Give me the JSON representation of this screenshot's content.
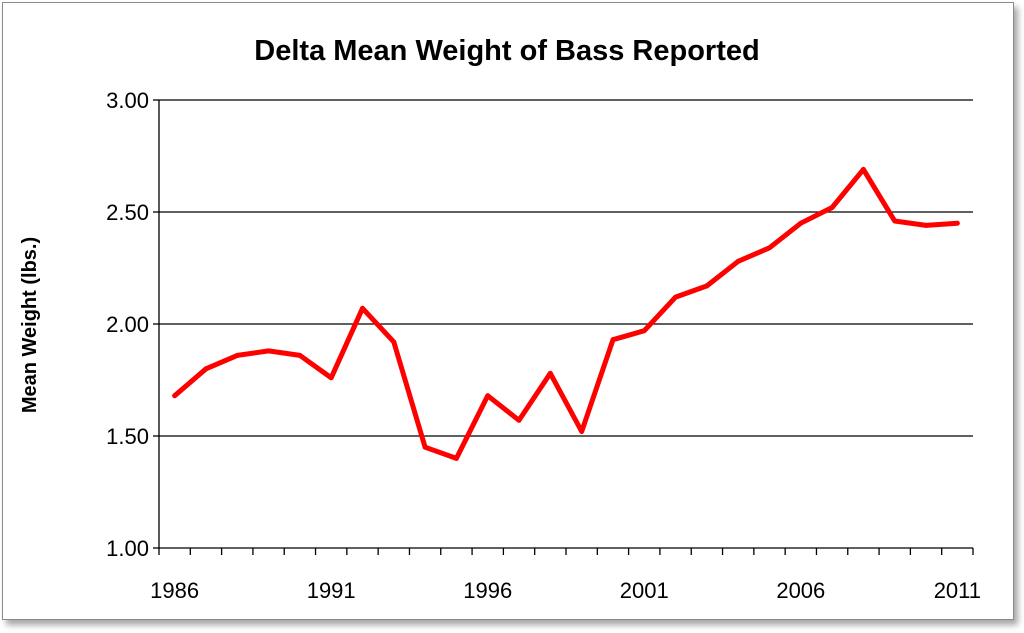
{
  "chart_data": {
    "type": "line",
    "title": "Delta Mean Weight of Bass Reported",
    "xlabel": "",
    "ylabel": "Mean Weight (lbs.)",
    "ylim": [
      1.0,
      3.0
    ],
    "xlim": [
      1986,
      2011
    ],
    "y_ticks": [
      "1.00",
      "1.50",
      "2.00",
      "2.50",
      "3.00"
    ],
    "x_ticks": [
      "1986",
      "1991",
      "1996",
      "2001",
      "2006",
      "2011"
    ],
    "grid": true,
    "legend": "none",
    "series": [
      {
        "color": "#ff0000",
        "x": [
          1986,
          1987,
          1988,
          1989,
          1990,
          1991,
          1992,
          1993,
          1994,
          1995,
          1996,
          1997,
          1998,
          1999,
          2000,
          2001,
          2002,
          2003,
          2004,
          2005,
          2006,
          2007,
          2008,
          2009,
          2010,
          2011
        ],
        "values": [
          1.68,
          1.8,
          1.86,
          1.88,
          1.86,
          1.76,
          2.07,
          1.92,
          1.45,
          1.4,
          1.68,
          1.57,
          1.78,
          1.52,
          1.93,
          1.97,
          2.12,
          2.17,
          2.28,
          2.34,
          2.45,
          2.52,
          2.69,
          2.46,
          2.44,
          2.45
        ]
      }
    ]
  }
}
